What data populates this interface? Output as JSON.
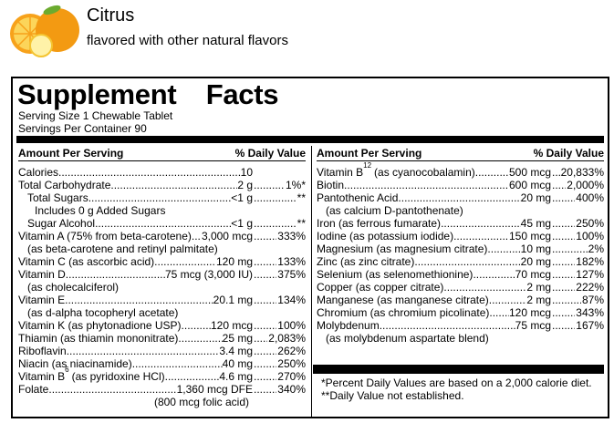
{
  "header": {
    "title": "Citrus",
    "subtitle": "flavored with other natural flavors"
  },
  "facts": {
    "title": "Supplement Facts",
    "serving_size": "Serving Size 1 Chewable Tablet",
    "servings_per_container": "Servings Per Container 90",
    "left": {
      "amount_header": "Amount Per Serving",
      "dv_header": "% Daily Value",
      "rows": [
        {
          "name": "Calories",
          "amount": "10"
        },
        {
          "name": "Total Carbohydrate",
          "amount": "2 g",
          "dv": "1%*"
        },
        {
          "name": "Total Sugars",
          "amount": "<1 g",
          "dv": "**"
        },
        {
          "note": "Includes 0 g Added Sugars"
        },
        {
          "name": "Sugar Alcohol",
          "amount": "<1 g",
          "dv": "**"
        },
        {
          "name": "Vitamin A (75% from beta-carotene)",
          "amount": "3,000 mcg",
          "dv": "333%"
        },
        {
          "note": "(as beta-carotene and retinyl palmitate)"
        },
        {
          "name": "Vitamin C (as ascorbic acid)",
          "amount": "120 mg",
          "dv": "133%"
        },
        {
          "name": "Vitamin D",
          "amount": "75 mcg (3,000 IU)",
          "dv": "375%"
        },
        {
          "note": "(as cholecalciferol)"
        },
        {
          "name": "Vitamin E",
          "amount": "20.1 mg",
          "dv": "134%"
        },
        {
          "note": "(as d-alpha tocopheryl acetate)"
        },
        {
          "name": "Vitamin K (as phytonadione USP)",
          "amount": "120 mcg",
          "dv": "100%"
        },
        {
          "name": "Thiamin (as thiamin mononitrate)",
          "amount": "25 mg",
          "dv": "2,083%"
        },
        {
          "name": "Riboflavin",
          "amount": "3.4 mg",
          "dv": "262%"
        },
        {
          "name": "Niacin (as niacinamide)",
          "amount": "40 mg",
          "dv": "250%"
        },
        {
          "name": "Vitamin B",
          "sub": "6",
          "name_rest": "(as pyridoxine HCl)",
          "amount": "4.6 mg",
          "dv": "270%"
        },
        {
          "name": "Folate",
          "amount": "1,360 mcg DFE",
          "dv": "340%"
        },
        {
          "note": "(800 mcg folic acid)"
        }
      ]
    },
    "right": {
      "amount_header": "Amount Per Serving",
      "dv_header": "% Daily Value",
      "rows": [
        {
          "name": "Vitamin B",
          "sub": "12",
          "name_rest": "(as cyanocobalamin)",
          "amount": "500 mcg",
          "dv": "20,833%"
        },
        {
          "name": "Biotin",
          "amount": "600 mcg",
          "dv": "2,000%"
        },
        {
          "name": "Pantothenic Acid",
          "amount": "20 mg",
          "dv": "400%"
        },
        {
          "note": "(as calcium D-pantothenate)"
        },
        {
          "name": "Iron (as ferrous fumarate)",
          "amount": "45 mg",
          "dv": "250%"
        },
        {
          "name": "Iodine (as potassium iodide)",
          "amount": "150 mcg",
          "dv": "100%"
        },
        {
          "name": "Magnesium (as magnesium citrate)",
          "amount": "10 mg",
          "dv": "2%"
        },
        {
          "name": "Zinc (as zinc citrate)",
          "amount": "20 mg",
          "dv": "182%"
        },
        {
          "name": "Selenium (as selenomethionine)",
          "amount": "70 mcg",
          "dv": "127%"
        },
        {
          "name": "Copper (as copper citrate)",
          "amount": "2 mg",
          "dv": "222%"
        },
        {
          "name": "Manganese (as manganese citrate)",
          "amount": "2 mg",
          "dv": "87%"
        },
        {
          "name": "Chromium (as chromium picolinate)",
          "amount": "120 mcg",
          "dv": "343%"
        },
        {
          "name": "Molybdenum",
          "amount": "75 mcg",
          "dv": "167%"
        },
        {
          "note": "(as molybdenum aspartate blend)"
        }
      ]
    },
    "footnotes": [
      "*Percent Daily Values are based on a 2,000 calorie diet.",
      "**Daily Value not established."
    ]
  }
}
